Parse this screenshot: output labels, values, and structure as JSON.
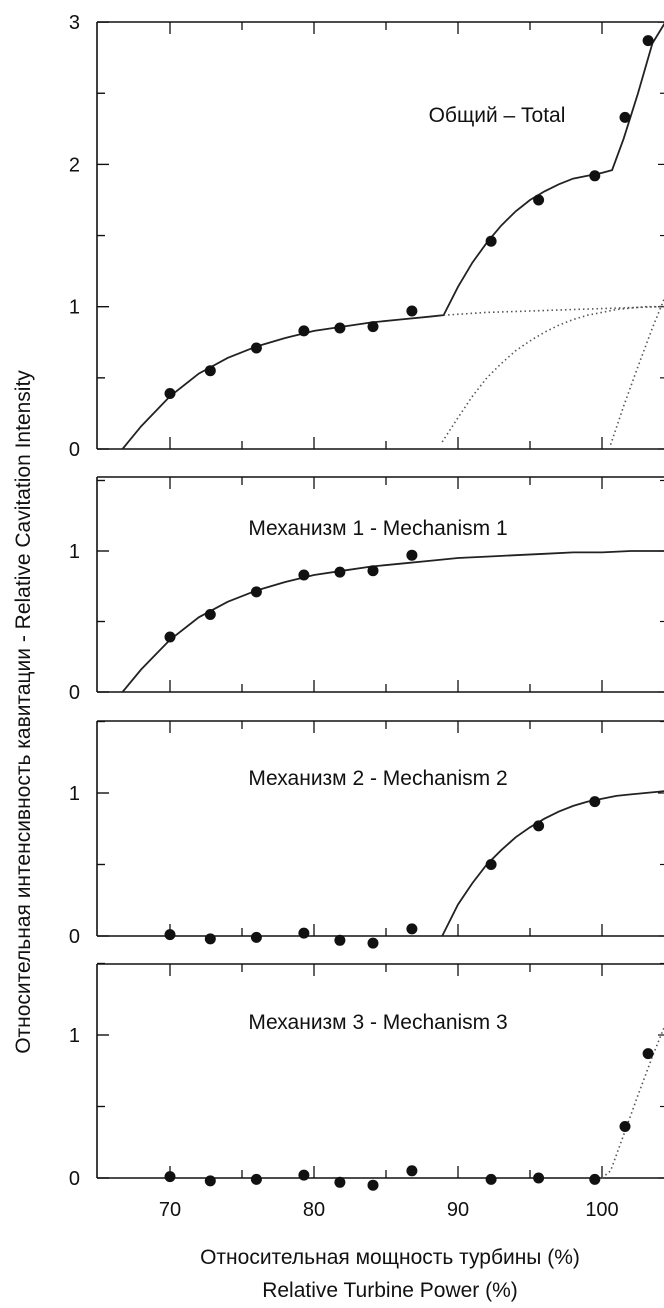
{
  "chart_data": [
    {
      "type": "scatter",
      "label": "Общий – Total",
      "ylim": [
        0,
        3
      ],
      "yticks": [
        0,
        1,
        2,
        3
      ],
      "xlim": [
        65,
        105
      ],
      "xticks": [
        70,
        80,
        90,
        100
      ],
      "points": {
        "x": [
          70.0,
          72.8,
          76.0,
          79.3,
          81.8,
          84.1,
          86.8,
          92.3,
          95.6,
          99.5,
          101.6,
          103.2
        ],
        "y": [
          0.39,
          0.55,
          0.71,
          0.83,
          0.85,
          0.86,
          0.97,
          1.46,
          1.75,
          1.92,
          2.33,
          2.87
        ]
      },
      "series": [
        {
          "kind": "solid",
          "x": [
            66.7,
            68,
            70,
            72,
            74,
            76,
            78,
            80,
            82,
            84,
            86,
            88,
            89.0,
            90,
            91,
            92,
            93,
            94,
            95,
            96,
            97,
            98,
            99,
            100,
            100.7,
            101.5,
            102.5,
            103.5,
            104.4
          ],
          "y": [
            0.0,
            0.16,
            0.37,
            0.53,
            0.64,
            0.72,
            0.78,
            0.83,
            0.86,
            0.89,
            0.91,
            0.93,
            0.94,
            1.14,
            1.31,
            1.45,
            1.57,
            1.67,
            1.75,
            1.81,
            1.86,
            1.9,
            1.92,
            1.94,
            1.96,
            2.18,
            2.5,
            2.85,
            3.0
          ]
        },
        {
          "kind": "dotted",
          "x": [
            89,
            92,
            95,
            98,
            101,
            104,
            105
          ],
          "y": [
            0.94,
            0.96,
            0.97,
            0.98,
            0.99,
            1.0,
            1.0
          ]
        },
        {
          "kind": "dotted",
          "x": [
            88.9,
            90,
            91,
            92,
            93,
            94,
            95,
            96,
            97,
            98,
            99,
            100,
            101,
            102,
            103,
            104,
            105
          ],
          "y": [
            0.05,
            0.22,
            0.37,
            0.5,
            0.6,
            0.69,
            0.76,
            0.82,
            0.87,
            0.91,
            0.94,
            0.96,
            0.98,
            0.99,
            1.0,
            1.0,
            1.0
          ]
        },
        {
          "kind": "dotted",
          "x": [
            100.6,
            101.5,
            102.5,
            103.5,
            104.5,
            105
          ],
          "y": [
            0.03,
            0.3,
            0.58,
            0.85,
            1.1,
            1.22
          ]
        }
      ]
    },
    {
      "type": "scatter",
      "label": "Механизм 1 - Mechanism 1",
      "ylim": [
        0,
        1.5
      ],
      "yticks": [
        0,
        1
      ],
      "xlim": [
        65,
        105
      ],
      "xticks": [
        70,
        80,
        90,
        100
      ],
      "points": {
        "x": [
          70.0,
          72.8,
          76.0,
          79.3,
          81.8,
          84.1,
          86.8
        ],
        "y": [
          0.39,
          0.55,
          0.71,
          0.83,
          0.85,
          0.86,
          0.97
        ]
      },
      "series": [
        {
          "kind": "solid",
          "x": [
            66.7,
            68,
            70,
            72,
            74,
            76,
            78,
            80,
            82,
            84,
            86,
            88,
            90,
            92,
            94,
            96,
            98,
            100,
            102,
            104,
            105
          ],
          "y": [
            0.0,
            0.16,
            0.37,
            0.53,
            0.64,
            0.72,
            0.78,
            0.83,
            0.86,
            0.89,
            0.91,
            0.93,
            0.95,
            0.96,
            0.97,
            0.98,
            0.99,
            0.99,
            1.0,
            1.0,
            1.0
          ]
        }
      ]
    },
    {
      "type": "scatter",
      "label": "Механизм 2 - Mechanism 2",
      "ylim": [
        0,
        1.5
      ],
      "yticks": [
        0,
        1
      ],
      "xlim": [
        65,
        105
      ],
      "xticks": [
        70,
        80,
        90,
        100
      ],
      "points": {
        "x": [
          70.0,
          72.8,
          76.0,
          79.3,
          81.8,
          84.1,
          86.8,
          92.3,
          95.6,
          99.5
        ],
        "y": [
          0.01,
          -0.02,
          -0.01,
          0.02,
          -0.03,
          -0.05,
          0.05,
          0.5,
          0.77,
          0.94
        ]
      },
      "series": [
        {
          "kind": "solid",
          "x": [
            88.9,
            90,
            91,
            92,
            93,
            94,
            95,
            96,
            97,
            98,
            99,
            100,
            101,
            102,
            103,
            104,
            105
          ],
          "y": [
            0.0,
            0.22,
            0.37,
            0.5,
            0.6,
            0.69,
            0.76,
            0.82,
            0.87,
            0.91,
            0.94,
            0.96,
            0.98,
            0.99,
            1.0,
            1.01,
            1.02
          ]
        }
      ]
    },
    {
      "type": "scatter",
      "label": "Механизм 3 - Mechanism 3",
      "ylim": [
        0,
        1.5
      ],
      "yticks": [
        0,
        1
      ],
      "xlim": [
        65,
        105
      ],
      "xticks": [
        70,
        80,
        90,
        100
      ],
      "points": {
        "x": [
          70.0,
          72.8,
          76.0,
          79.3,
          81.8,
          84.1,
          86.8,
          92.3,
          95.6,
          99.5,
          101.6,
          103.2
        ],
        "y": [
          0.01,
          -0.02,
          -0.01,
          0.02,
          -0.03,
          -0.05,
          0.05,
          -0.01,
          0.0,
          -0.01,
          0.36,
          0.87
        ]
      },
      "series": [
        {
          "kind": "dotted",
          "x": [
            100.0,
            100.6,
            101.5,
            102.5,
            103.5,
            104.5,
            105
          ],
          "y": [
            0.0,
            0.05,
            0.3,
            0.58,
            0.85,
            1.1,
            1.22
          ]
        }
      ]
    }
  ],
  "axes": {
    "ylabel": "Относительная интенсивность кавитации - Relative Cavitation Intensity",
    "xlabel_ru": "Относительная мощность турбины (%)",
    "xlabel_en": "Relative Turbine Power (%)"
  },
  "colors": {
    "ink": "#111111",
    "curve": "#222222",
    "dotted": "#555555"
  }
}
